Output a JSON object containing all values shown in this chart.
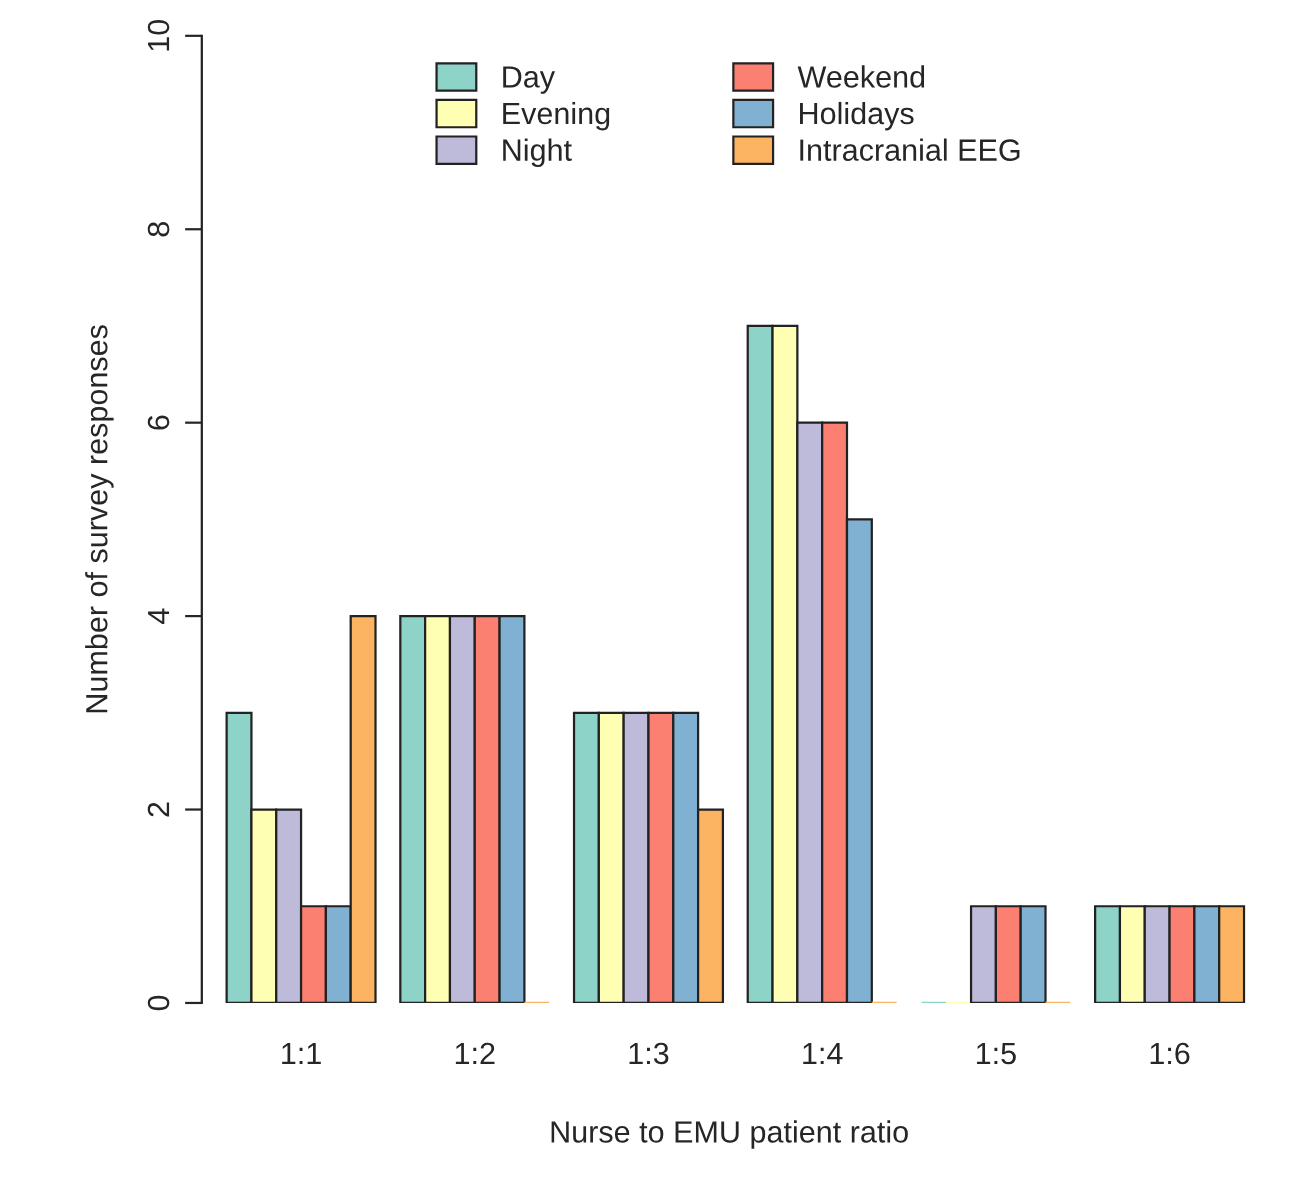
{
  "chart_data": {
    "type": "bar",
    "xlabel": "Nurse to EMU patient ratio",
    "ylabel": "Number of survey responses",
    "categories": [
      "1:1",
      "1:2",
      "1:3",
      "1:4",
      "1:5",
      "1:6"
    ],
    "series": [
      {
        "name": "Day",
        "color": "#8dd3c7",
        "values": [
          3,
          4,
          3,
          7,
          0,
          1
        ]
      },
      {
        "name": "Evening",
        "color": "#ffffb3",
        "values": [
          2,
          4,
          3,
          7,
          0,
          1
        ]
      },
      {
        "name": "Night",
        "color": "#bebada",
        "values": [
          2,
          4,
          3,
          6,
          1,
          1
        ]
      },
      {
        "name": "Weekend",
        "color": "#fb8072",
        "values": [
          1,
          4,
          3,
          6,
          1,
          1
        ]
      },
      {
        "name": "Holidays",
        "color": "#80b1d3",
        "values": [
          1,
          4,
          3,
          5,
          1,
          1
        ]
      },
      {
        "name": "Intracranial EEG",
        "color": "#fdb462",
        "values": [
          4,
          0,
          2,
          0,
          0,
          1
        ]
      }
    ],
    "ylim": [
      0,
      10
    ],
    "yticks": [
      0,
      2,
      4,
      6,
      8,
      10
    ],
    "grid": false,
    "legend": "top"
  }
}
